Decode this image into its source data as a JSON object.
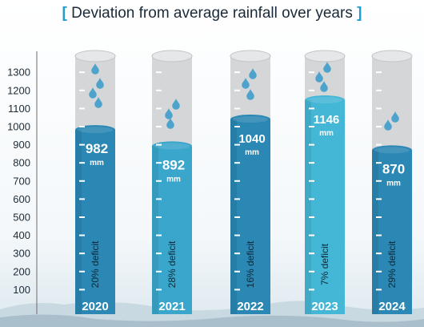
{
  "chart_data": {
    "type": "bar",
    "title": "Deviation from average rainfall over years",
    "categories": [
      "2020",
      "2021",
      "2022",
      "2023",
      "2024"
    ],
    "values": [
      982,
      892,
      1040,
      1146,
      870
    ],
    "value_unit": "mm",
    "value_labels": [
      "982",
      "892",
      "1040",
      "1146",
      "870"
    ],
    "annotations": [
      "20% deficit",
      "28% deficit",
      "16% deficit",
      "7% deficit",
      "29% deficit"
    ],
    "yticks": [
      100,
      200,
      300,
      400,
      500,
      600,
      700,
      800,
      900,
      1000,
      1100,
      1200,
      1300
    ],
    "ylim": [
      0,
      1400
    ],
    "xlabel": "",
    "ylabel": "",
    "grid": false,
    "colors": {
      "fill": [
        "#2b87b3",
        "#3aa6cb",
        "#2b87b3",
        "#45b7d6",
        "#2b87b3"
      ],
      "tube": "#d4d6d8",
      "drop": "#4ea3cc"
    }
  }
}
